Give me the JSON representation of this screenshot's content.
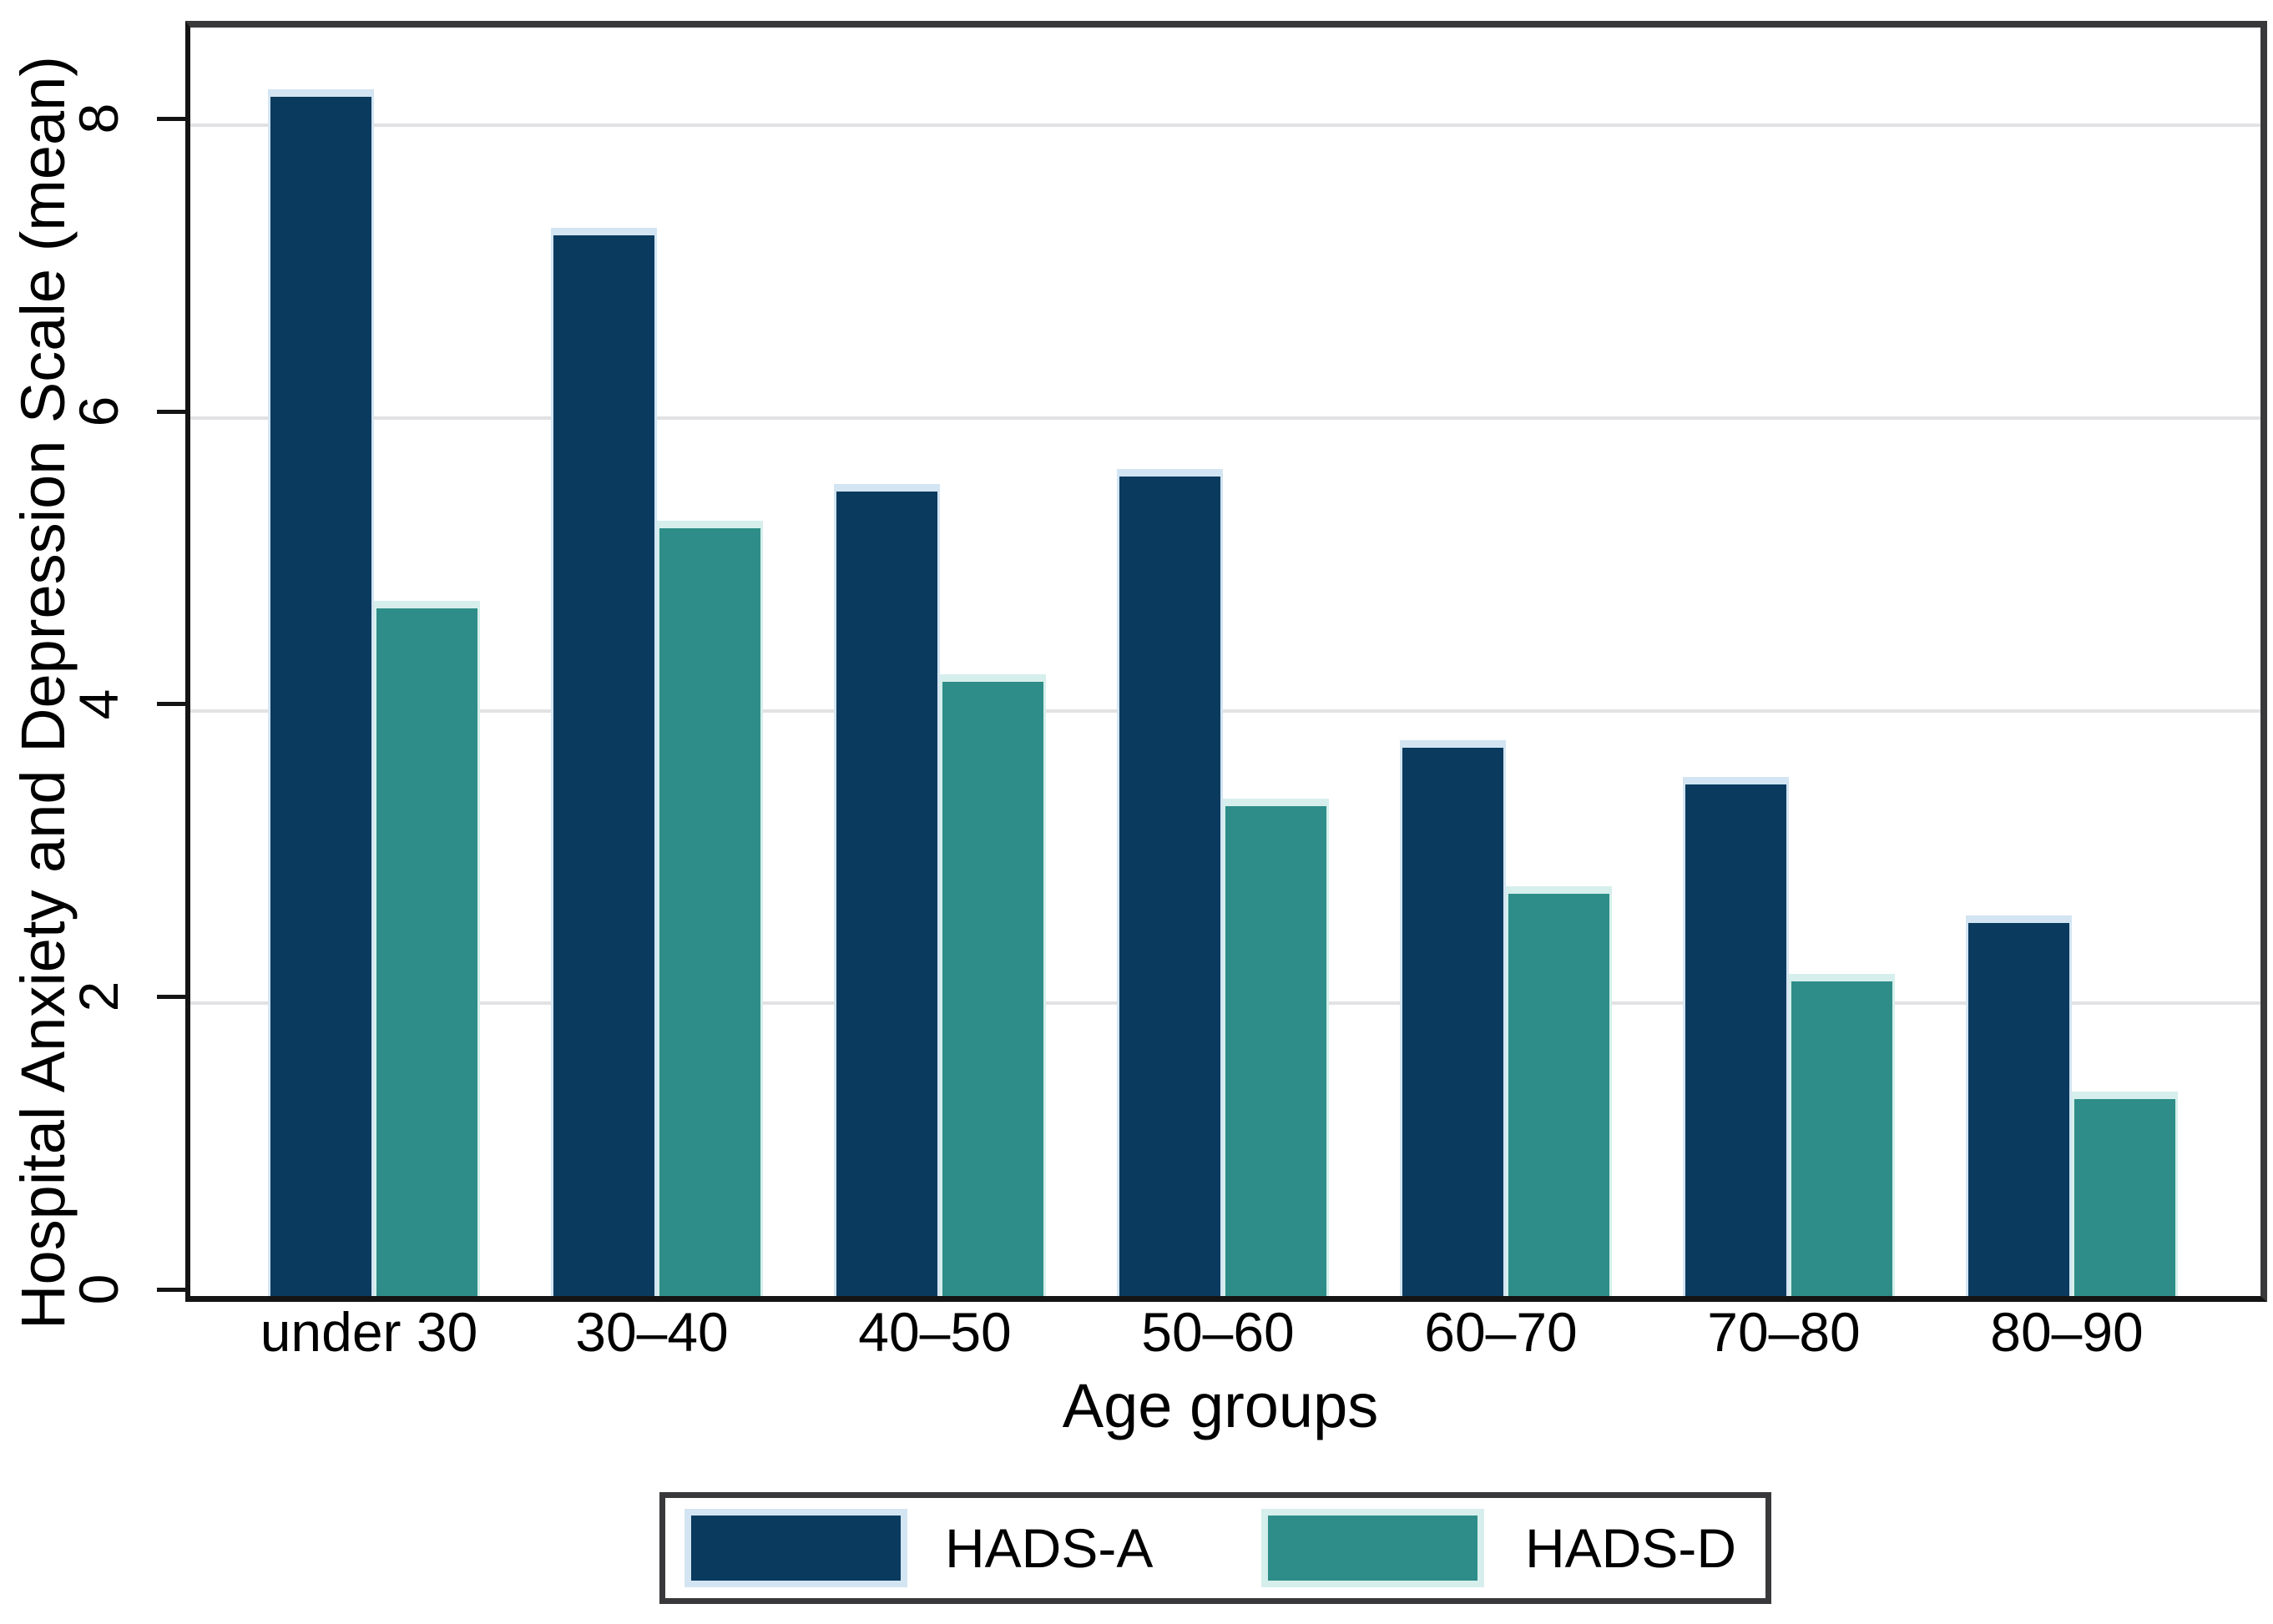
{
  "y_axis": {
    "title": "Hospital Anxiety and Depression Scale (mean)",
    "tick_labels": [
      "0",
      "2",
      "4",
      "6",
      "8"
    ]
  },
  "x_axis": {
    "title": "Age groups"
  },
  "legend": {
    "items": [
      {
        "label": "HADS-A",
        "series": "hads_a"
      },
      {
        "label": "HADS-D",
        "series": "hads_d"
      }
    ]
  },
  "colors": {
    "hads_a_fill": "#0a3a5e",
    "hads_a_edge": "#d3e5f2",
    "hads_d_fill": "#2e8d88",
    "hads_d_edge": "#d6efec",
    "gridline": "#e2e2e4",
    "frame": "#39393b",
    "axis": "#141414",
    "text": "#000000"
  },
  "chart_data": {
    "type": "bar",
    "title": "",
    "categories": [
      "under 30",
      "30–40",
      "40–50",
      "50–60",
      "60–70",
      "70–80",
      "80–90"
    ],
    "series": [
      {
        "name": "HADS-A",
        "values": [
          8.25,
          7.3,
          5.55,
          5.65,
          3.8,
          3.55,
          2.6
        ]
      },
      {
        "name": "HADS-D",
        "values": [
          4.75,
          5.3,
          4.25,
          3.4,
          2.8,
          2.2,
          1.4
        ]
      }
    ],
    "xlabel": "Age groups",
    "ylabel": "Hospital Anxiety and Depression Scale (mean)",
    "ylim": [
      0,
      8.67
    ],
    "yticks": [
      0,
      2,
      4,
      6,
      8
    ],
    "grid": "horizontal",
    "legend_position": "bottom"
  }
}
